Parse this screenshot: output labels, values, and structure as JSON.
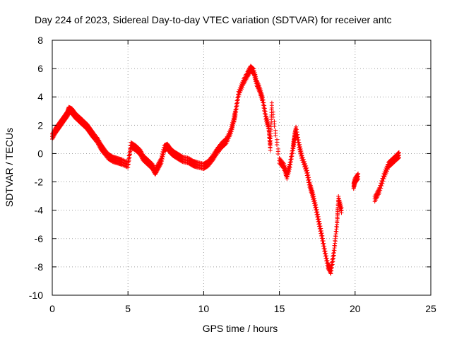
{
  "chart_data": {
    "type": "scatter",
    "title": "Day 224 of 2023, Sidereal Day-to-day VTEC variation (SDTVAR) for receiver antc",
    "xlabel": "GPS time / hours",
    "ylabel": "SDTVAR / TECUs",
    "xlim": [
      0,
      25
    ],
    "ylim": [
      -10,
      8
    ],
    "xticks": [
      0,
      5,
      10,
      15,
      20,
      25
    ],
    "yticks": [
      -10,
      -8,
      -6,
      -4,
      -2,
      0,
      2,
      4,
      6,
      8
    ],
    "xtick_labels": [
      "0",
      "5",
      "10",
      "15",
      "20",
      "25"
    ],
    "ytick_labels": [
      "-10",
      "-8",
      "-6",
      "-4",
      "-2",
      "0",
      "2",
      "4",
      "6",
      "8"
    ],
    "grid": true,
    "legend": "none",
    "marker": "plus",
    "color": "#ff0000",
    "series": [
      {
        "name": "SDTVAR",
        "trace": [
          [
            0.0,
            1.2
          ],
          [
            0.2,
            1.6
          ],
          [
            0.4,
            1.9
          ],
          [
            0.6,
            2.2
          ],
          [
            0.8,
            2.5
          ],
          [
            1.0,
            2.8
          ],
          [
            1.1,
            3.1
          ],
          [
            1.3,
            3.0
          ],
          [
            1.5,
            2.7
          ],
          [
            1.8,
            2.4
          ],
          [
            2.0,
            2.2
          ],
          [
            2.3,
            1.9
          ],
          [
            2.5,
            1.6
          ],
          [
            2.7,
            1.3
          ],
          [
            3.0,
            0.9
          ],
          [
            3.2,
            0.5
          ],
          [
            3.4,
            0.2
          ],
          [
            3.7,
            -0.2
          ],
          [
            4.0,
            -0.4
          ],
          [
            4.3,
            -0.5
          ],
          [
            4.6,
            -0.6
          ],
          [
            5.0,
            -0.8
          ],
          [
            5.2,
            0.6
          ],
          [
            5.5,
            0.4
          ],
          [
            5.8,
            0.1
          ],
          [
            6.0,
            -0.3
          ],
          [
            6.3,
            -0.6
          ],
          [
            6.6,
            -0.9
          ],
          [
            6.8,
            -1.3
          ],
          [
            7.0,
            -0.9
          ],
          [
            7.2,
            -0.5
          ],
          [
            7.4,
            0.4
          ],
          [
            7.6,
            0.5
          ],
          [
            7.8,
            0.2
          ],
          [
            8.0,
            0.0
          ],
          [
            8.3,
            -0.2
          ],
          [
            8.6,
            -0.4
          ],
          [
            9.0,
            -0.5
          ],
          [
            9.3,
            -0.7
          ],
          [
            9.6,
            -0.8
          ],
          [
            10.0,
            -0.9
          ],
          [
            10.3,
            -0.7
          ],
          [
            10.6,
            -0.3
          ],
          [
            10.9,
            0.2
          ],
          [
            11.2,
            0.6
          ],
          [
            11.5,
            0.9
          ],
          [
            11.8,
            1.6
          ],
          [
            12.0,
            2.4
          ],
          [
            12.1,
            2.9
          ],
          [
            12.3,
            4.2
          ],
          [
            12.6,
            5.0
          ],
          [
            12.9,
            5.6
          ],
          [
            13.1,
            6.0
          ],
          [
            13.3,
            5.8
          ],
          [
            13.5,
            5.0
          ],
          [
            13.7,
            4.5
          ],
          [
            13.9,
            3.8
          ],
          [
            14.1,
            2.6
          ],
          [
            14.3,
            1.8
          ],
          [
            14.4,
            0.4
          ],
          [
            14.5,
            3.4
          ],
          [
            15.0,
            -0.5
          ],
          [
            15.3,
            -0.9
          ],
          [
            15.5,
            -1.6
          ],
          [
            15.7,
            -0.8
          ],
          [
            15.9,
            0.4
          ],
          [
            16.0,
            1.2
          ],
          [
            16.1,
            1.7
          ],
          [
            16.3,
            0.6
          ],
          [
            16.5,
            -0.3
          ],
          [
            16.8,
            -1.2
          ],
          [
            17.0,
            -2.2
          ],
          [
            17.2,
            -2.9
          ],
          [
            17.4,
            -3.8
          ],
          [
            17.6,
            -4.8
          ],
          [
            17.8,
            -5.8
          ],
          [
            18.0,
            -6.9
          ],
          [
            18.2,
            -7.9
          ],
          [
            18.4,
            -8.3
          ],
          [
            18.6,
            -7.0
          ],
          [
            18.8,
            -5.0
          ],
          [
            18.9,
            -3.2
          ],
          [
            19.1,
            -4.0
          ],
          [
            19.9,
            -2.3
          ],
          [
            20.0,
            -1.9
          ],
          [
            20.2,
            -1.6
          ],
          [
            21.3,
            -3.2
          ],
          [
            21.6,
            -2.6
          ],
          [
            21.9,
            -1.6
          ],
          [
            22.2,
            -0.8
          ],
          [
            22.5,
            -0.5
          ],
          [
            22.8,
            -0.2
          ],
          [
            22.9,
            -0.1
          ]
        ]
      }
    ]
  }
}
